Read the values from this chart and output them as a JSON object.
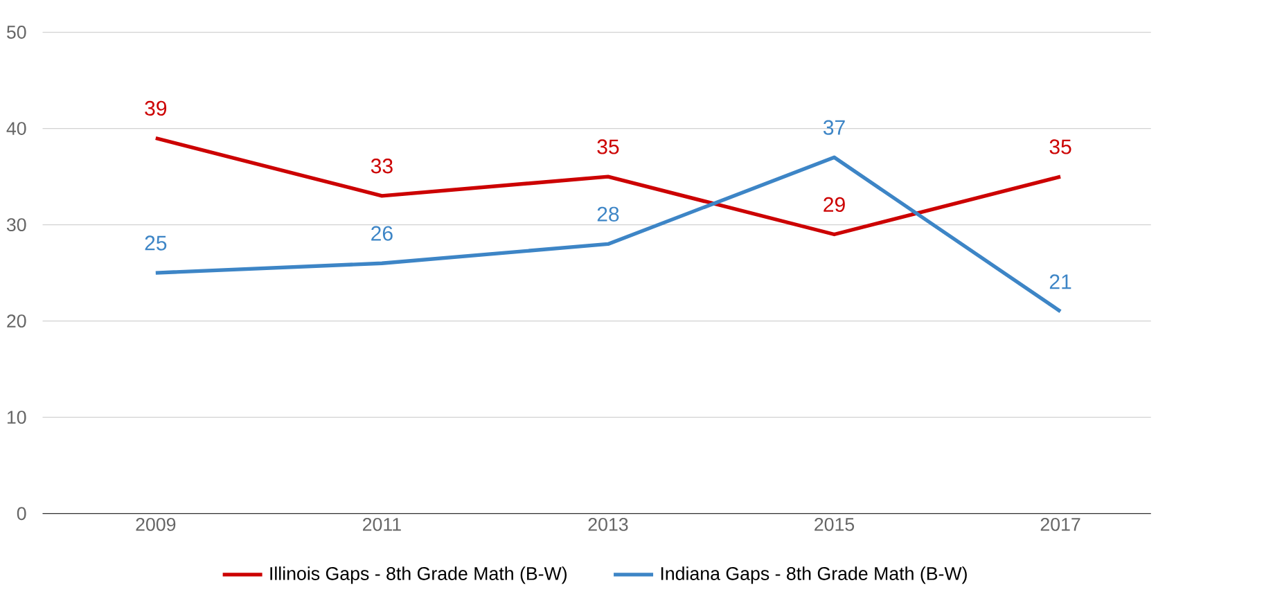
{
  "chart_data": {
    "type": "line",
    "categories": [
      "2009",
      "2011",
      "2013",
      "2015",
      "2017"
    ],
    "series": [
      {
        "name": "Illinois Gaps - 8th Grade Math (B-W)",
        "color": "#cc0000",
        "values": [
          39,
          33,
          35,
          29,
          35
        ]
      },
      {
        "name": "Indiana Gaps - 8th Grade Math (B-W)",
        "color": "#3d85c6",
        "values": [
          25,
          26,
          28,
          37,
          21
        ]
      }
    ],
    "ylim": [
      0,
      50
    ],
    "yticks": [
      0,
      10,
      20,
      30,
      40,
      50
    ],
    "grid": "y",
    "legend": "bottom",
    "data_labels": true
  }
}
